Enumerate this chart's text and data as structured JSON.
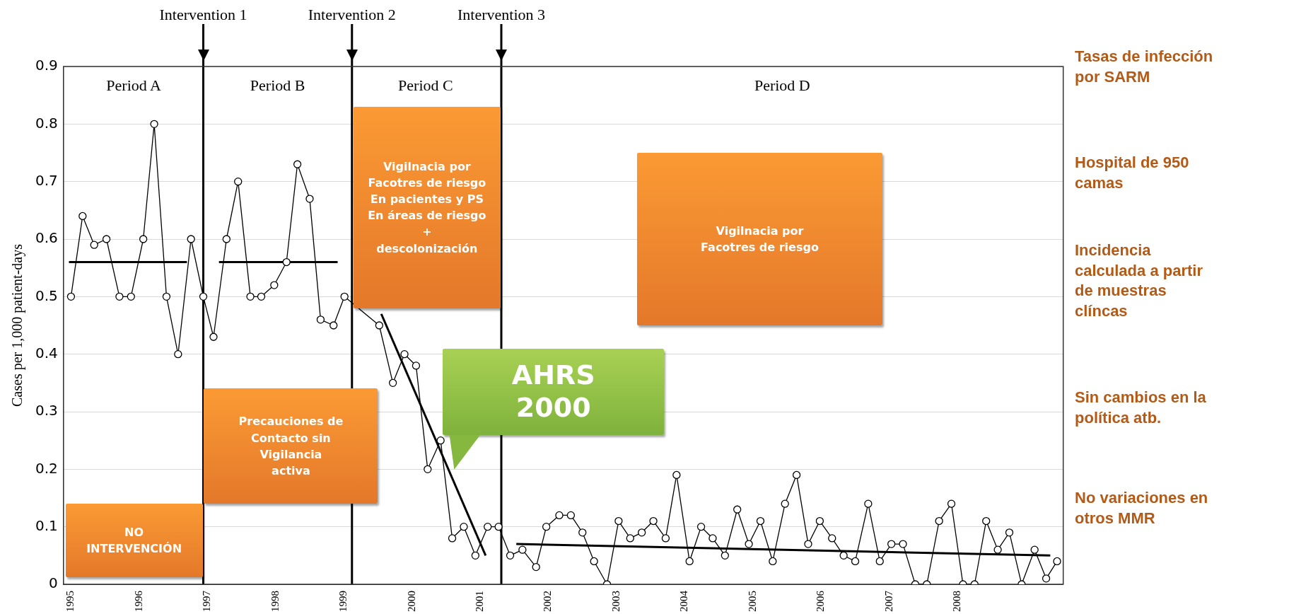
{
  "chart_data": {
    "type": "line",
    "ylabel": "Cases per 1,000 patient-days",
    "xlim": [
      1994.89,
      2009.55
    ],
    "xticks": [
      1995,
      1996,
      1997,
      1998,
      1999,
      2000,
      2001,
      2002,
      2003,
      2004,
      2005,
      2006,
      2007,
      2008
    ],
    "ylim": [
      0,
      0.9
    ],
    "yticks": [
      0,
      0.1,
      0.2,
      0.3,
      0.4,
      0.5,
      0.6,
      0.7,
      0.8,
      0.9
    ],
    "grid": "y",
    "series": [
      {
        "color": "#000000",
        "marker": "circle",
        "x": [
          1995.0,
          1995.17,
          1995.34,
          1995.52,
          1995.71,
          1995.88,
          1996.06,
          1996.22,
          1996.4,
          1996.57,
          1996.76,
          1996.94,
          1997.09,
          1997.28,
          1997.45,
          1997.63,
          1997.79,
          1997.98,
          1998.16,
          1998.32,
          1998.5,
          1998.66,
          1998.85,
          1999.01,
          1999.18,
          1999.35,
          1999.52,
          1999.72,
          1999.89,
          2000.06,
          2000.23,
          2000.42,
          2000.59,
          2000.76,
          2000.93,
          2001.11,
          2001.27,
          2001.44,
          2001.62,
          2001.82,
          2001.97,
          2002.16,
          2002.33,
          2002.5,
          2002.67,
          2002.86,
          2003.03,
          2003.2,
          2003.37,
          2003.54,
          2003.72,
          2003.88,
          2004.07,
          2004.24,
          2004.41,
          2004.59,
          2004.77,
          2004.94,
          2005.11,
          2005.29,
          2005.47,
          2005.64,
          2005.81,
          2005.98,
          2006.16,
          2006.33,
          2006.5,
          2006.69,
          2006.86,
          2007.03,
          2007.2,
          2007.38,
          2007.55,
          2007.73,
          2007.91,
          2008.08,
          2008.25,
          2008.42,
          2008.59,
          2008.76,
          2008.94,
          2009.13,
          2009.3,
          2009.46
        ],
        "values": [
          0.5,
          0.64,
          0.59,
          0.6,
          0.5,
          0.5,
          0.6,
          0.8,
          0.5,
          0.4,
          0.6,
          0.5,
          0.43,
          0.6,
          0.7,
          0.5,
          0.5,
          0.52,
          0.56,
          0.73,
          0.67,
          0.46,
          0.45,
          0.5,
          null,
          null,
          0.45,
          0.35,
          0.4,
          0.38,
          0.2,
          0.25,
          0.08,
          0.1,
          0.05,
          0.1,
          0.1,
          0.05,
          0.06,
          0.03,
          0.1,
          0.12,
          0.12,
          0.09,
          0.04,
          0,
          0.11,
          0.08,
          0.09,
          0.11,
          0.08,
          0.19,
          0.04,
          0.1,
          0.08,
          0.05,
          0.13,
          0.07,
          0.11,
          0.04,
          0.14,
          0.19,
          0.07,
          0.11,
          0.08,
          0.05,
          0.04,
          0.14,
          0.04,
          0.07,
          0.07,
          0,
          0,
          0.11,
          0.14,
          0,
          0,
          0.11,
          0.06,
          0.09,
          0,
          0.06,
          0.01,
          0.04
        ]
      },
      {
        "color": "#000000",
        "marker": "none",
        "x": [
          1994.97,
          1996.7
        ],
        "values": [
          0.56,
          0.56
        ]
      },
      {
        "color": "#000000",
        "marker": "none",
        "x": [
          1997.17,
          1998.91
        ],
        "values": [
          0.56,
          0.56
        ]
      },
      {
        "color": "#000000",
        "marker": "none",
        "x": [
          1999.55,
          2001.08
        ],
        "values": [
          0.47,
          0.05
        ]
      },
      {
        "color": "#000000",
        "marker": "none",
        "x": [
          2001.53,
          2009.36
        ],
        "values": [
          0.07,
          0.05
        ]
      }
    ],
    "ref_lines": [
      {
        "axis": "x",
        "value": 1996.94,
        "label": "Intervention 1",
        "color": "#000000"
      },
      {
        "axis": "x",
        "value": 1999.12,
        "label": "Intervention 2",
        "color": "#000000"
      },
      {
        "axis": "x",
        "value": 2001.31,
        "label": "Intervention 3",
        "color": "#000000"
      }
    ],
    "annotations": [
      "Period A",
      "Period B",
      "Period C",
      "Period D",
      "NO\nINTERVENCIÓN",
      "Precauciones de\nContacto sin\nVigilancia\nactiva",
      "Vigilnacia por\nFacotres de riesgo\nEn pacientes y PS\nEn áreas de riesgo\n+\ndescolonización",
      "Vigilnacia por\nFacotres de riesgo",
      "AHRS\n2000",
      "Tasas de infección\npor SARM",
      "Hospital de 950\ncamas",
      "Incidencia\ncalculada a partir\nde muestras\nclíncas",
      "Sin cambios en la\npolítica atb.",
      "No variaciones en\notros MMR"
    ]
  }
}
